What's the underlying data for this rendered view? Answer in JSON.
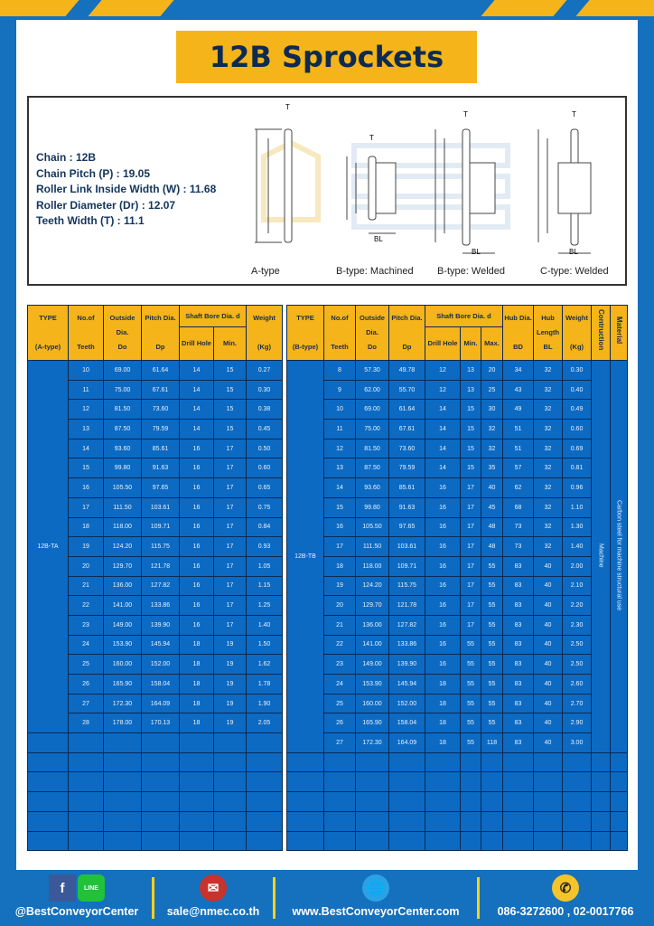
{
  "title": "12B Sprockets",
  "specs": [
    "Chain : 12B",
    "Chain Pitch (P) : 19.05",
    "Roller Link Inside Width (W) : 11.68",
    "Roller Diameter (Dr) : 12.07",
    "Teeth Width (T) : 11.1"
  ],
  "watermark": "BEST CONVEYOR CENTER",
  "diagrams": [
    "A-type",
    "B-type: Machined",
    "B-type: Welded",
    "C-type: Welded"
  ],
  "dim_labels": {
    "T": "T",
    "Do": "Do",
    "Dp": "Dp",
    "d": "d",
    "BD": "BD",
    "BL": "BL"
  },
  "table_a": {
    "headers": {
      "type": "TYPE",
      "type_sub": "(A-type)",
      "teeth": "No.of",
      "teeth_sub": "Teeth",
      "outside": "Outside",
      "outside_sub": "Dia.",
      "outside_sub2": "Do",
      "pitch": "Pitch Dia.",
      "pitch_sub": "Dp",
      "shaft": "Shaft Bore Dia. d",
      "drill": "Drill Hole",
      "min": "Min.",
      "weight": "Weight",
      "weight_sub": "(Kg)"
    },
    "type_value": "12B-TA",
    "rows": [
      [
        "10",
        "69.00",
        "61.64",
        "14",
        "15",
        "0.27"
      ],
      [
        "11",
        "75.00",
        "67.61",
        "14",
        "15",
        "0.30"
      ],
      [
        "12",
        "81.50",
        "73.60",
        "14",
        "15",
        "0.38"
      ],
      [
        "13",
        "87.50",
        "79.59",
        "14",
        "15",
        "0.45"
      ],
      [
        "14",
        "93.60",
        "85.61",
        "16",
        "17",
        "0.50"
      ],
      [
        "15",
        "99.80",
        "91.63",
        "16",
        "17",
        "0.60"
      ],
      [
        "16",
        "105.50",
        "97.65",
        "16",
        "17",
        "0.65"
      ],
      [
        "17",
        "111.50",
        "103.61",
        "16",
        "17",
        "0.75"
      ],
      [
        "18",
        "118.00",
        "109.71",
        "16",
        "17",
        "0.84"
      ],
      [
        "19",
        "124.20",
        "115.75",
        "16",
        "17",
        "0.93"
      ],
      [
        "20",
        "129.70",
        "121.78",
        "16",
        "17",
        "1.05"
      ],
      [
        "21",
        "136.00",
        "127.82",
        "16",
        "17",
        "1.15"
      ],
      [
        "22",
        "141.00",
        "133.86",
        "16",
        "17",
        "1.25"
      ],
      [
        "23",
        "149.00",
        "139.90",
        "16",
        "17",
        "1.40"
      ],
      [
        "24",
        "153.90",
        "145.94",
        "18",
        "19",
        "1.50"
      ],
      [
        "25",
        "160.00",
        "152.00",
        "18",
        "19",
        "1.62"
      ],
      [
        "26",
        "165.90",
        "158.04",
        "18",
        "19",
        "1.78"
      ],
      [
        "27",
        "172.30",
        "164.09",
        "18",
        "19",
        "1.90"
      ],
      [
        "28",
        "178.00",
        "170.13",
        "18",
        "19",
        "2.05"
      ]
    ]
  },
  "table_b": {
    "headers": {
      "type": "TYPE",
      "type_sub": "(B-type)",
      "teeth": "No.of",
      "teeth_sub": "Teeth",
      "outside": "Outside",
      "outside_sub": "Dia.",
      "outside_sub2": "Do",
      "pitch": "Pitch Dia.",
      "pitch_sub": "Dp",
      "shaft": "Shaft Bore Dia. d",
      "drill": "Drill Hole",
      "min": "Min.",
      "max": "Max.",
      "hub_dia": "Hub Dia.",
      "hub_dia_sub": "BD",
      "hub_len": "Hub",
      "hub_len_sub": "Length",
      "hub_len_sub2": "BL",
      "weight": "Weight",
      "weight_sub": "(Kg)",
      "construction": "Contruction",
      "material": "Material"
    },
    "type_value": "12B-TB",
    "construction_value": "Machine",
    "material_value": "Carbon steel for machine structural use",
    "rows": [
      [
        "8",
        "57.30",
        "49.78",
        "12",
        "13",
        "20",
        "34",
        "32",
        "0.30"
      ],
      [
        "9",
        "62.00",
        "55.70",
        "12",
        "13",
        "25",
        "43",
        "32",
        "0.40"
      ],
      [
        "10",
        "69.00",
        "61.64",
        "14",
        "15",
        "30",
        "49",
        "32",
        "0.49"
      ],
      [
        "11",
        "75.00",
        "67.61",
        "14",
        "15",
        "32",
        "51",
        "32",
        "0.60"
      ],
      [
        "12",
        "81.50",
        "73.60",
        "14",
        "15",
        "32",
        "51",
        "32",
        "0.69"
      ],
      [
        "13",
        "87.50",
        "79.59",
        "14",
        "15",
        "35",
        "57",
        "32",
        "0.81"
      ],
      [
        "14",
        "93.60",
        "85.61",
        "16",
        "17",
        "40",
        "62",
        "32",
        "0.96"
      ],
      [
        "15",
        "99.80",
        "91.63",
        "16",
        "17",
        "45",
        "68",
        "32",
        "1.10"
      ],
      [
        "16",
        "105.50",
        "97.65",
        "16",
        "17",
        "48",
        "73",
        "32",
        "1.30"
      ],
      [
        "17",
        "111.50",
        "103.61",
        "16",
        "17",
        "48",
        "73",
        "32",
        "1.40"
      ],
      [
        "18",
        "118.00",
        "109.71",
        "16",
        "17",
        "55",
        "83",
        "40",
        "2.00"
      ],
      [
        "19",
        "124.20",
        "115.75",
        "16",
        "17",
        "55",
        "83",
        "40",
        "2.10"
      ],
      [
        "20",
        "129.70",
        "121.78",
        "16",
        "17",
        "55",
        "83",
        "40",
        "2.20"
      ],
      [
        "21",
        "136.00",
        "127.82",
        "16",
        "17",
        "55",
        "83",
        "40",
        "2.30"
      ],
      [
        "22",
        "141.00",
        "133.86",
        "16",
        "55",
        "55",
        "83",
        "40",
        "2.50"
      ],
      [
        "23",
        "149.00",
        "139.90",
        "16",
        "55",
        "55",
        "83",
        "40",
        "2.50"
      ],
      [
        "24",
        "153.90",
        "145.94",
        "18",
        "55",
        "55",
        "83",
        "40",
        "2.60"
      ],
      [
        "25",
        "160.00",
        "152.00",
        "18",
        "55",
        "55",
        "83",
        "40",
        "2.70"
      ],
      [
        "26",
        "165.90",
        "158.04",
        "18",
        "55",
        "55",
        "83",
        "40",
        "2.90"
      ],
      [
        "27",
        "172.30",
        "164.09",
        "18",
        "55",
        "118",
        "83",
        "40",
        "3.00"
      ]
    ]
  },
  "footer": {
    "social": "@BestConveyorCenter",
    "line_icon_text": "LINE",
    "email": "sale@nmec.co.th",
    "website": "www.BestConveyorCenter.com",
    "phone": "086-3272600 , 02-0017766"
  },
  "colors": {
    "brand_blue": "#1570bd",
    "accent_yellow": "#f4b41a",
    "table_blue": "#0c6ac3"
  }
}
